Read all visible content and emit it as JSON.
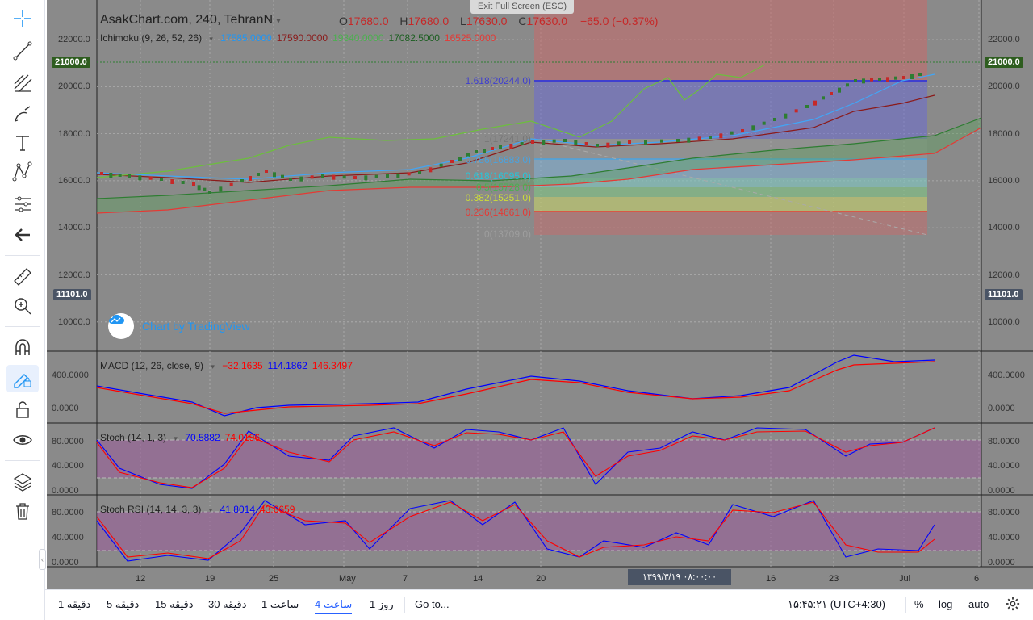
{
  "chart_header": {
    "symbol": "AsakChart.com, 240, TehranN",
    "open_label": "O",
    "open": "17680.0",
    "high_label": "H",
    "high": "17680.0",
    "low_label": "L",
    "low": "17630.0",
    "close_label": "C",
    "close": "17630.0",
    "change": "−65.0 (−0.37%)"
  },
  "exit_fullscreen": "Exit Full Screen (ESC)",
  "ichimoku": {
    "label": "Ichimoku (9, 26, 52, 26)",
    "values": [
      "17585.0000",
      "17590.0000",
      "19340.0000",
      "17082.5000",
      "16525.0000"
    ],
    "colors": [
      "#2196f3",
      "#8b1a1a",
      "#4caf50",
      "#1b5e20",
      "#e53935"
    ]
  },
  "macd": {
    "label": "MACD (12, 26, close, 9)",
    "values": [
      "−32.1635",
      "114.1862",
      "146.3497"
    ],
    "colors": [
      "#ff0000",
      "#0000ff",
      "#ff0000"
    ]
  },
  "stoch": {
    "label": "Stoch (14, 1, 3)",
    "values": [
      "70.5882",
      "74.0196"
    ],
    "colors": [
      "#0000ff",
      "#ff0000"
    ]
  },
  "stochrsi": {
    "label": "Stoch RSI (14, 14, 3, 3)",
    "values": [
      "41.8014",
      "43.6659"
    ],
    "colors": [
      "#0000ff",
      "#ff0000"
    ]
  },
  "price_axis": {
    "ticks": [
      "22000.0",
      "20000.0",
      "18000.0",
      "16000.0",
      "14000.0",
      "12000.0",
      "10000.0"
    ],
    "last_price": "21000.0",
    "crosshair_price": "11101.0"
  },
  "macd_axis": [
    "400.0000",
    "0.0000"
  ],
  "stoch_axis": [
    "80.0000",
    "40.0000",
    "0.0000"
  ],
  "stochrsi_axis": [
    "80.0000",
    "40.0000",
    "0.0000"
  ],
  "fib_levels": [
    {
      "label": "1.618(20244.0)",
      "color": "#3f3fcf"
    },
    {
      "label": "1(17241.0)",
      "color": "#777777"
    },
    {
      "label": "0.786(16883.0)",
      "color": "#4aa3df"
    },
    {
      "label": "0.618(16095.0)",
      "color": "#26c6da"
    },
    {
      "label": "0.5(15728.0)",
      "color": "#4caf50"
    },
    {
      "label": "0.382(15251.0)",
      "color": "#cddc39"
    },
    {
      "label": "0.236(14661.0)",
      "color": "#e53935"
    },
    {
      "label": "0(13709.0)",
      "color": "#9e9e9e"
    }
  ],
  "watermark": "Chart by TradingView",
  "time_axis": [
    "12",
    "19",
    "25",
    "May",
    "7",
    "14",
    "20",
    "16",
    "23",
    "Jul",
    "6"
  ],
  "time_badge": "۱۳۹۹/۳/۱۹  ۰۸:۰۰:۰۰",
  "bottom_bar": {
    "timeframes": [
      "1 دقیقه",
      "5 دقیقه",
      "15 دقیقه",
      "30 دقیقه",
      "1 ساعت",
      "4 ساعت",
      "1 روز"
    ],
    "active_timeframe": "4 ساعت",
    "goto": "Go to...",
    "clock": "۱۵:۴۵:۲۱ (UTC+4:30)",
    "percent": "%",
    "log": "log",
    "auto": "auto"
  },
  "icons": [
    "crosshair-icon",
    "trendline-icon",
    "fib-icon",
    "brush-icon",
    "text-icon",
    "pattern-icon",
    "forecast-icon",
    "back-arrow-icon",
    "ruler-icon",
    "zoom-icon",
    "magnet-icon",
    "lock-drawing-icon",
    "unlock-icon",
    "eye-icon",
    "layers-icon",
    "trash-icon",
    "gear-icon"
  ]
}
